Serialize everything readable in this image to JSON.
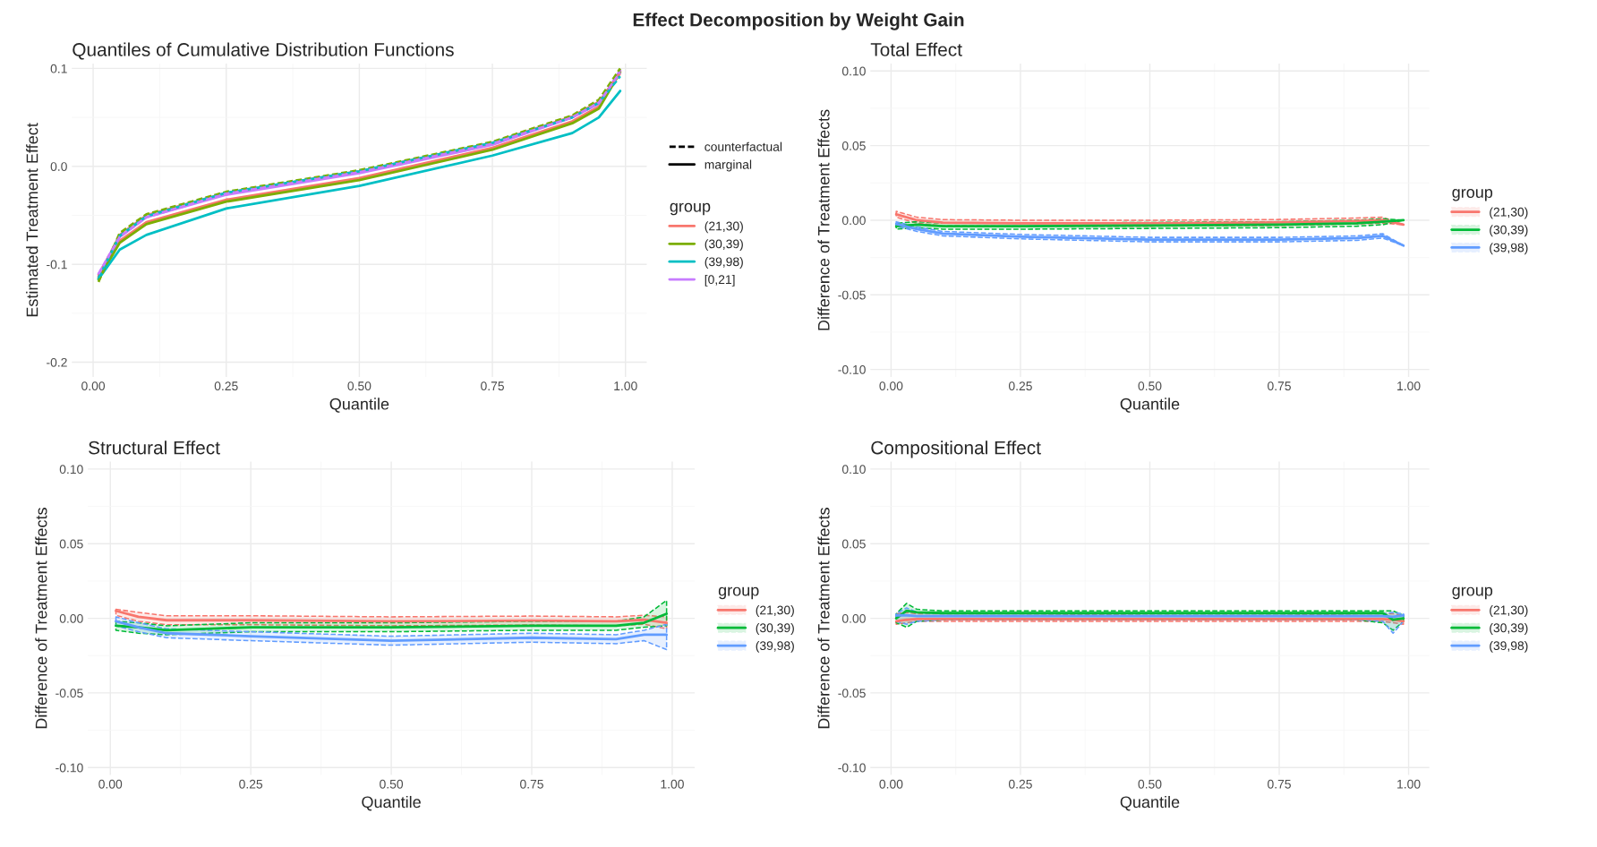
{
  "chart_data": [
    {
      "type": "line",
      "title": "Quantiles of Cumulative Distribution Functions",
      "xlabel": "Quantile",
      "ylabel": "Estimated Treatment Effect",
      "legend_title": "group",
      "legend": "right",
      "grid": true,
      "x": [
        0.01,
        0.05,
        0.1,
        0.25,
        0.5,
        0.75,
        0.9,
        0.95,
        0.99
      ],
      "xlim": [
        -0.04,
        1.04
      ],
      "ylim": [
        -0.215,
        0.105
      ],
      "xticks": [
        {
          "value": 0,
          "label": "0.00"
        },
        {
          "value": 0.25,
          "label": "0.25"
        },
        {
          "value": 0.5,
          "label": "0.50"
        },
        {
          "value": 0.75,
          "label": "0.75"
        },
        {
          "value": 1,
          "label": "1.00"
        }
      ],
      "yticks": [
        {
          "value": -0.2,
          "label": "-0.2"
        },
        {
          "value": -0.1,
          "label": "-0.1"
        },
        {
          "value": 0,
          "label": "0.0"
        },
        {
          "value": 0.1,
          "label": "0.1"
        }
      ],
      "annotations": [
        "Effect Decomposition by Weight Gain",
        "counterfactual",
        "marginal"
      ],
      "series": [
        {
          "color": "#F8766D",
          "line_style": "dashed",
          "values": [
            -0.112,
            -0.07,
            -0.05,
            -0.027,
            -0.005,
            0.024,
            0.051,
            0.066,
            0.095
          ]
        },
        {
          "color": "#7CAE00",
          "line_style": "dashed",
          "values": [
            -0.118,
            -0.068,
            -0.049,
            -0.026,
            -0.004,
            0.025,
            0.052,
            0.068,
            0.1
          ]
        },
        {
          "color": "#00BFC4",
          "line_style": "dashed",
          "values": [
            -0.114,
            -0.071,
            -0.051,
            -0.027,
            -0.005,
            0.024,
            0.05,
            0.065,
            0.092
          ]
        },
        {
          "color": "#C77CFF",
          "line_style": "dashed",
          "values": [
            -0.11,
            -0.072,
            -0.052,
            -0.028,
            -0.006,
            0.023,
            0.05,
            0.065,
            0.096
          ]
        },
        {
          "name": "(21,30)",
          "color": "#F8766D",
          "line_style": "solid",
          "values": [
            -0.113,
            -0.076,
            -0.057,
            -0.034,
            -0.012,
            0.019,
            0.046,
            0.061,
            0.097
          ]
        },
        {
          "name": "(30,39)",
          "color": "#7CAE00",
          "line_style": "solid",
          "values": [
            -0.115,
            -0.078,
            -0.059,
            -0.036,
            -0.014,
            0.017,
            0.044,
            0.059,
            0.096
          ]
        },
        {
          "name": "(39,98)",
          "color": "#00BFC4",
          "line_style": "solid",
          "values": [
            -0.115,
            -0.085,
            -0.07,
            -0.043,
            -0.02,
            0.011,
            0.034,
            0.05,
            0.077
          ]
        },
        {
          "name": "[0,21]",
          "color": "#C77CFF",
          "line_style": "solid",
          "values": [
            -0.11,
            -0.072,
            -0.052,
            -0.029,
            -0.007,
            0.022,
            0.05,
            0.064,
            0.098
          ]
        }
      ]
    },
    {
      "type": "line",
      "title": "Total Effect",
      "xlabel": "Quantile",
      "ylabel": "Difference of Treatment Effects",
      "legend_title": "group",
      "legend": "right",
      "grid": true,
      "x": [
        0.01,
        0.05,
        0.1,
        0.25,
        0.5,
        0.75,
        0.9,
        0.95,
        0.99
      ],
      "xlim": [
        -0.04,
        1.04
      ],
      "ylim": [
        -0.105,
        0.105
      ],
      "xticks": [
        {
          "value": 0,
          "label": "0.00"
        },
        {
          "value": 0.25,
          "label": "0.25"
        },
        {
          "value": 0.5,
          "label": "0.50"
        },
        {
          "value": 0.75,
          "label": "0.75"
        },
        {
          "value": 1,
          "label": "1.00"
        }
      ],
      "yticks": [
        {
          "value": -0.1,
          "label": "-0.10"
        },
        {
          "value": -0.05,
          "label": "-0.05"
        },
        {
          "value": 0,
          "label": "0.00"
        },
        {
          "value": 0.05,
          "label": "0.05"
        },
        {
          "value": 0.1,
          "label": "0.10"
        }
      ],
      "series": [
        {
          "name": "(21,30)",
          "color": "#F8766D",
          "line_style": "solid",
          "values": [
            0.004,
            0.0,
            -0.0016,
            -0.002,
            -0.002,
            -0.0015,
            -0.0005,
            0.0,
            -0.003
          ],
          "lower": [
            0.002,
            -0.002,
            -0.0036,
            -0.004,
            -0.004,
            -0.0035,
            -0.0025,
            -0.002,
            -0.003
          ],
          "upper": [
            0.006,
            0.002,
            0.0004,
            0.0,
            0.0,
            0.0005,
            0.0015,
            0.002,
            -0.003
          ]
        },
        {
          "name": "(30,39)",
          "color": "#00BA38",
          "line_style": "solid",
          "values": [
            -0.004,
            -0.003,
            -0.004,
            -0.004,
            -0.0035,
            -0.003,
            -0.002,
            -0.001,
            0.0
          ],
          "lower": [
            -0.006,
            -0.005,
            -0.006,
            -0.006,
            -0.0055,
            -0.005,
            -0.004,
            -0.003,
            0.0
          ],
          "upper": [
            -0.002,
            -0.001,
            -0.002,
            -0.002,
            -0.0015,
            -0.001,
            0.0,
            0.001,
            0.0
          ]
        },
        {
          "name": "(39,98)",
          "color": "#619CFF",
          "line_style": "solid",
          "values": [
            -0.0025,
            -0.006,
            -0.009,
            -0.011,
            -0.013,
            -0.013,
            -0.012,
            -0.0105,
            -0.017
          ],
          "lower": [
            -0.004,
            -0.0075,
            -0.0105,
            -0.0125,
            -0.0145,
            -0.0145,
            -0.0135,
            -0.012,
            -0.017
          ],
          "upper": [
            -0.001,
            -0.0045,
            -0.0075,
            -0.0095,
            -0.0115,
            -0.0115,
            -0.0105,
            -0.009,
            -0.017
          ]
        }
      ]
    },
    {
      "type": "line",
      "title": "Structural Effect",
      "xlabel": "Quantile",
      "ylabel": "Difference of Treatment Effects",
      "legend_title": "group",
      "legend": "right",
      "grid": true,
      "x": [
        0.01,
        0.05,
        0.1,
        0.25,
        0.5,
        0.75,
        0.9,
        0.95,
        0.99
      ],
      "xlim": [
        -0.04,
        1.04
      ],
      "ylim": [
        -0.105,
        0.105
      ],
      "xticks": [
        {
          "value": 0,
          "label": "0.00"
        },
        {
          "value": 0.25,
          "label": "0.25"
        },
        {
          "value": 0.5,
          "label": "0.50"
        },
        {
          "value": 0.75,
          "label": "0.75"
        },
        {
          "value": 1,
          "label": "1.00"
        }
      ],
      "yticks": [
        {
          "value": -0.1,
          "label": "-0.10"
        },
        {
          "value": -0.05,
          "label": "-0.05"
        },
        {
          "value": 0,
          "label": "0.00"
        },
        {
          "value": 0.05,
          "label": "0.05"
        },
        {
          "value": 0.1,
          "label": "0.10"
        }
      ],
      "series": [
        {
          "name": "(21,30)",
          "color": "#F8766D",
          "line_style": "solid",
          "values": [
            0.005,
            0.001,
            -0.0013,
            -0.0013,
            -0.002,
            -0.0015,
            -0.002,
            -0.001,
            -0.003
          ],
          "lower": [
            0.002,
            -0.002,
            -0.0043,
            -0.0043,
            -0.005,
            -0.0045,
            -0.005,
            -0.004,
            -0.007
          ],
          "upper": [
            0.006,
            0.004,
            0.0017,
            0.0017,
            0.001,
            0.0015,
            0.001,
            0.002,
            0.001
          ]
        },
        {
          "name": "(30,39)",
          "color": "#00BA38",
          "line_style": "solid",
          "values": [
            -0.005,
            -0.006,
            -0.008,
            -0.006,
            -0.006,
            -0.005,
            -0.005,
            -0.003,
            0.003
          ],
          "lower": [
            -0.008,
            -0.01,
            -0.011,
            -0.009,
            -0.009,
            -0.008,
            -0.008,
            -0.006,
            -0.005
          ],
          "upper": [
            -0.002,
            -0.003,
            -0.005,
            -0.003,
            -0.003,
            -0.002,
            -0.002,
            0.001,
            0.012
          ]
        },
        {
          "name": "(39,98)",
          "color": "#619CFF",
          "line_style": "solid",
          "values": [
            -0.002,
            -0.006,
            -0.01,
            -0.012,
            -0.015,
            -0.013,
            -0.014,
            -0.011,
            -0.011
          ],
          "lower": [
            -0.005,
            -0.009,
            -0.013,
            -0.015,
            -0.018,
            -0.016,
            -0.017,
            -0.015,
            -0.021
          ],
          "upper": [
            0.001,
            -0.003,
            -0.007,
            -0.009,
            -0.012,
            -0.01,
            -0.011,
            -0.008,
            -0.004
          ]
        }
      ]
    },
    {
      "type": "line",
      "title": "Compositional Effect",
      "xlabel": "Quantile",
      "ylabel": "Difference of Treatment Effects",
      "legend_title": "group",
      "legend": "right",
      "grid": true,
      "x": [
        0.01,
        0.03,
        0.05,
        0.1,
        0.25,
        0.5,
        0.75,
        0.9,
        0.95,
        0.97,
        0.99
      ],
      "xlim": [
        -0.04,
        1.04
      ],
      "ylim": [
        -0.105,
        0.105
      ],
      "xticks": [
        {
          "value": 0,
          "label": "0.00"
        },
        {
          "value": 0.25,
          "label": "0.25"
        },
        {
          "value": 0.5,
          "label": "0.50"
        },
        {
          "value": 0.75,
          "label": "0.75"
        },
        {
          "value": 1,
          "label": "1.00"
        }
      ],
      "yticks": [
        {
          "value": -0.1,
          "label": "-0.10"
        },
        {
          "value": -0.05,
          "label": "-0.05"
        },
        {
          "value": 0,
          "label": "0.00"
        },
        {
          "value": 0.05,
          "label": "0.05"
        },
        {
          "value": 0.1,
          "label": "0.10"
        }
      ],
      "series": [
        {
          "name": "(21,30)",
          "color": "#F8766D",
          "line_style": "solid",
          "values": [
            -0.002,
            -0.001,
            -0.0005,
            -0.0005,
            -0.0005,
            -0.0005,
            -0.0005,
            -0.0005,
            -0.0005,
            -0.001,
            -0.002
          ],
          "lower": [
            -0.004,
            -0.003,
            -0.002,
            -0.002,
            -0.002,
            -0.002,
            -0.002,
            -0.002,
            -0.002,
            -0.003,
            -0.004
          ],
          "upper": [
            0.003,
            0.004,
            0.003,
            0.003,
            0.003,
            0.002,
            0.002,
            0.003,
            0.003,
            0.003,
            0.002
          ]
        },
        {
          "name": "(30,39)",
          "color": "#00BA38",
          "line_style": "solid",
          "values": [
            0.0,
            0.005,
            0.004,
            0.0035,
            0.0035,
            0.0035,
            0.0035,
            0.0035,
            0.0035,
            -0.001,
            0.0
          ],
          "lower": [
            -0.003,
            -0.006,
            -0.002,
            -0.001,
            -0.001,
            -0.001,
            -0.001,
            -0.001,
            -0.003,
            -0.008,
            -0.002
          ],
          "upper": [
            0.003,
            0.01,
            0.006,
            0.005,
            0.005,
            0.005,
            0.005,
            0.005,
            0.005,
            0.005,
            0.002
          ]
        },
        {
          "name": "(39,98)",
          "color": "#619CFF",
          "line_style": "solid",
          "values": [
            0.002,
            0.002,
            0.0015,
            0.0015,
            0.0015,
            0.0015,
            0.0015,
            0.0015,
            0.0015,
            0.001,
            0.002
          ],
          "lower": [
            -0.002,
            -0.004,
            -0.002,
            -0.001,
            -0.001,
            -0.001,
            -0.001,
            -0.001,
            -0.002,
            -0.01,
            -0.002
          ],
          "upper": [
            0.003,
            0.007,
            0.004,
            0.003,
            0.003,
            0.003,
            0.003,
            0.003,
            0.003,
            0.004,
            0.003
          ]
        }
      ]
    }
  ]
}
